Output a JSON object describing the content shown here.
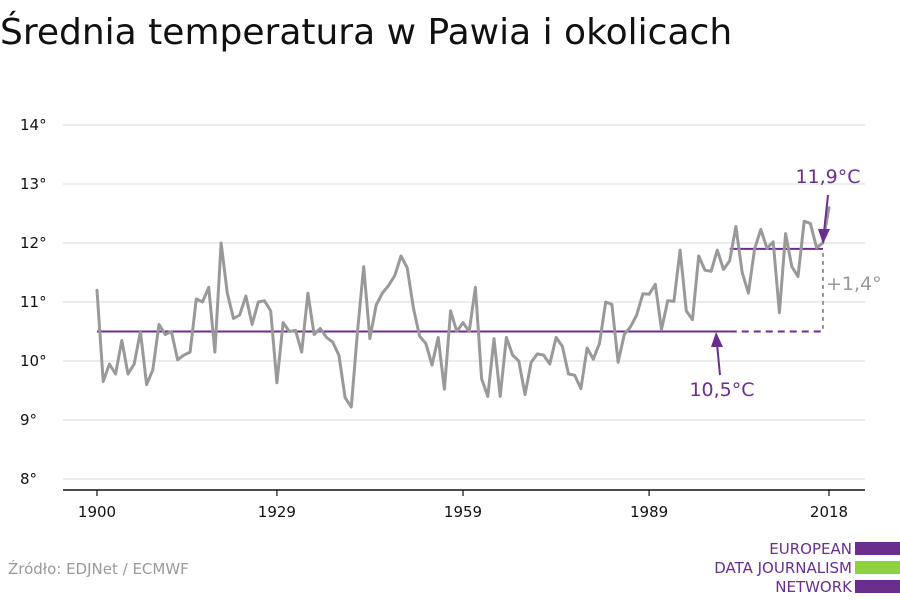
{
  "title": "Średnia temperatura w Pawia i okolicach",
  "source": "Źródło: EDJNet / ECMWF",
  "logo": {
    "lines": [
      "EUROPEAN",
      "DATA JOURNALISM",
      "NETWORK"
    ],
    "colors": [
      "#6b2d8e",
      "#8fd13f",
      "#6b2d8e"
    ]
  },
  "colors": {
    "series": "#999999",
    "accent": "#6b2d8e",
    "grid": "#d9d9d9"
  },
  "chart_data": {
    "type": "line",
    "title": "Średnia temperatura w Pawia i okolicach",
    "xlabel": "",
    "ylabel": "",
    "xlim": [
      1900,
      2018
    ],
    "ylim": [
      8,
      14
    ],
    "x_ticks": [
      1900,
      1929,
      1959,
      1989,
      2018
    ],
    "y_ticks": [
      8,
      9,
      10,
      11,
      12,
      13,
      14
    ],
    "y_tick_labels": [
      "8°",
      "9°",
      "10°",
      "11°",
      "12°",
      "13°",
      "14°"
    ],
    "grid": true,
    "series": [
      {
        "x": [
          1900,
          1901,
          1902,
          1903,
          1904,
          1905,
          1906,
          1907,
          1908,
          1909,
          1910,
          1911,
          1912,
          1913,
          1914,
          1915,
          1916,
          1917,
          1918,
          1919,
          1920,
          1921,
          1922,
          1923,
          1924,
          1925,
          1926,
          1927,
          1928,
          1929,
          1930,
          1931,
          1932,
          1933,
          1934,
          1935,
          1936,
          1937,
          1938,
          1939,
          1940,
          1941,
          1942,
          1943,
          1944,
          1945,
          1946,
          1947,
          1948,
          1949,
          1950,
          1951,
          1952,
          1953,
          1954,
          1955,
          1956,
          1957,
          1958,
          1959,
          1960,
          1961,
          1962,
          1963,
          1964,
          1965,
          1966,
          1967,
          1968,
          1969,
          1970,
          1971,
          1972,
          1973,
          1974,
          1975,
          1976,
          1977,
          1978,
          1979,
          1980,
          1981,
          1982,
          1983,
          1984,
          1985,
          1986,
          1987,
          1988,
          1989,
          1990,
          1991,
          1992,
          1993,
          1994,
          1995,
          1996,
          1997,
          1998,
          1999,
          2000,
          2001,
          2002,
          2003,
          2004,
          2005,
          2006,
          2007,
          2008,
          2009,
          2010,
          2011,
          2012,
          2013,
          2014,
          2015,
          2016,
          2017,
          2018
        ],
        "values": [
          11.2,
          9.65,
          9.95,
          9.78,
          10.35,
          9.78,
          9.95,
          10.5,
          9.6,
          9.85,
          10.62,
          10.45,
          10.5,
          10.02,
          10.1,
          10.15,
          11.05,
          11.0,
          11.25,
          10.15,
          12.0,
          11.15,
          10.72,
          10.78,
          11.1,
          10.62,
          11.0,
          11.02,
          10.85,
          9.63,
          10.65,
          10.5,
          10.52,
          10.15,
          11.15,
          10.45,
          10.55,
          10.4,
          10.32,
          10.1,
          9.38,
          9.22,
          10.5,
          11.6,
          10.38,
          10.95,
          11.15,
          11.28,
          11.45,
          11.78,
          11.58,
          10.9,
          10.42,
          10.3,
          9.93,
          10.4,
          9.52,
          10.85,
          10.5,
          10.65,
          10.5,
          11.25,
          9.7,
          9.4,
          10.38,
          9.4,
          10.4,
          10.1,
          10.0,
          9.43,
          9.98,
          10.12,
          10.1,
          9.95,
          10.4,
          10.25,
          9.78,
          9.76,
          9.53,
          10.22,
          10.03,
          10.3,
          11.0,
          10.96,
          9.98,
          10.45,
          10.58,
          10.78,
          11.14,
          11.13,
          11.3,
          10.53,
          11.02,
          11.01,
          11.88,
          10.85,
          10.7,
          11.78,
          11.54,
          11.52,
          11.88,
          11.55,
          11.7,
          12.28,
          11.5,
          11.15,
          11.9,
          12.23,
          11.91,
          12.02,
          10.82,
          12.16,
          11.6,
          11.43,
          12.37,
          12.33,
          11.92,
          12.0,
          12.6
        ],
        "color": "#999999"
      }
    ],
    "reference_lines": [
      {
        "label": "10,5°C",
        "value": 10.5,
        "from": 1900,
        "to": 2018,
        "dashed_from": 2002
      },
      {
        "label": "11,9°C",
        "value": 11.9,
        "from": 2002,
        "to": 2018
      }
    ],
    "annotations": [
      {
        "text": "11,9°C"
      },
      {
        "text": "10,5°C"
      },
      {
        "text": "+1,4°"
      }
    ]
  }
}
